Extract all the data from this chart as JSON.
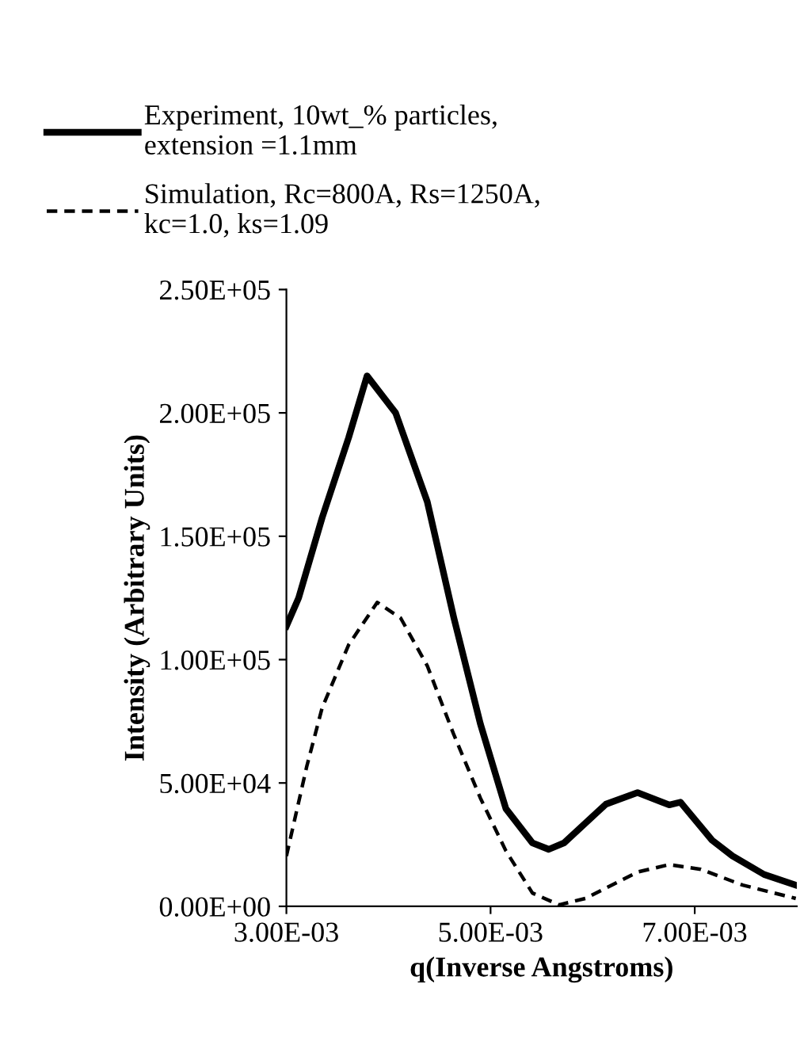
{
  "chart_data": {
    "type": "line",
    "xlabel": "q(Inverse Angstroms)",
    "ylabel": "Intensity (Arbitrary Units)",
    "xlim": [
      0.003,
      0.008
    ],
    "ylim": [
      0,
      250000
    ],
    "xticks": [
      {
        "value": 0.003,
        "label": "3.00E-03"
      },
      {
        "value": 0.005,
        "label": "5.00E-03"
      },
      {
        "value": 0.007,
        "label": "7.00E-03"
      }
    ],
    "yticks": [
      {
        "value": 0,
        "label": "0.00E+00"
      },
      {
        "value": 50000,
        "label": "5.00E+04"
      },
      {
        "value": 100000,
        "label": "1.00E+05"
      },
      {
        "value": 150000,
        "label": "1.50E+05"
      },
      {
        "value": 200000,
        "label": "2.00E+05"
      },
      {
        "value": 250000,
        "label": "2.50E+05"
      }
    ],
    "grid": false,
    "legend": "top",
    "series": [
      {
        "name": "Experiment, 10wt_% particles, extension =1.1mm",
        "color": "#000000",
        "line_style": "solid",
        "x": [
          0.003,
          0.00312,
          0.00335,
          0.00361,
          0.00379,
          0.00407,
          0.00438,
          0.00464,
          0.0049,
          0.00515,
          0.00541,
          0.00557,
          0.00572,
          0.00613,
          0.00644,
          0.00675,
          0.00686,
          0.00717,
          0.00737,
          0.00768,
          0.00799
        ],
        "values": [
          113600,
          125000,
          157500,
          190000,
          215000,
          200000,
          164000,
          117000,
          74000,
          39600,
          25700,
          23100,
          25700,
          41400,
          46100,
          41100,
          42200,
          26800,
          20400,
          12900,
          8600
        ]
      },
      {
        "name": "Simulation, Rc=800A, Rs=1250A, kc=1.0, ks=1.09",
        "color": "#000000",
        "line_style": "dashed",
        "x": [
          0.003,
          0.0032,
          0.00335,
          0.00361,
          0.00389,
          0.00412,
          0.00438,
          0.00464,
          0.0049,
          0.00515,
          0.00541,
          0.00567,
          0.00593,
          0.00644,
          0.00675,
          0.00706,
          0.00747,
          0.00799
        ],
        "values": [
          20400,
          56800,
          80400,
          106000,
          123200,
          116800,
          97500,
          69600,
          43900,
          22500,
          5400,
          600,
          3200,
          13900,
          16900,
          15000,
          8600,
          3200
        ]
      }
    ]
  }
}
